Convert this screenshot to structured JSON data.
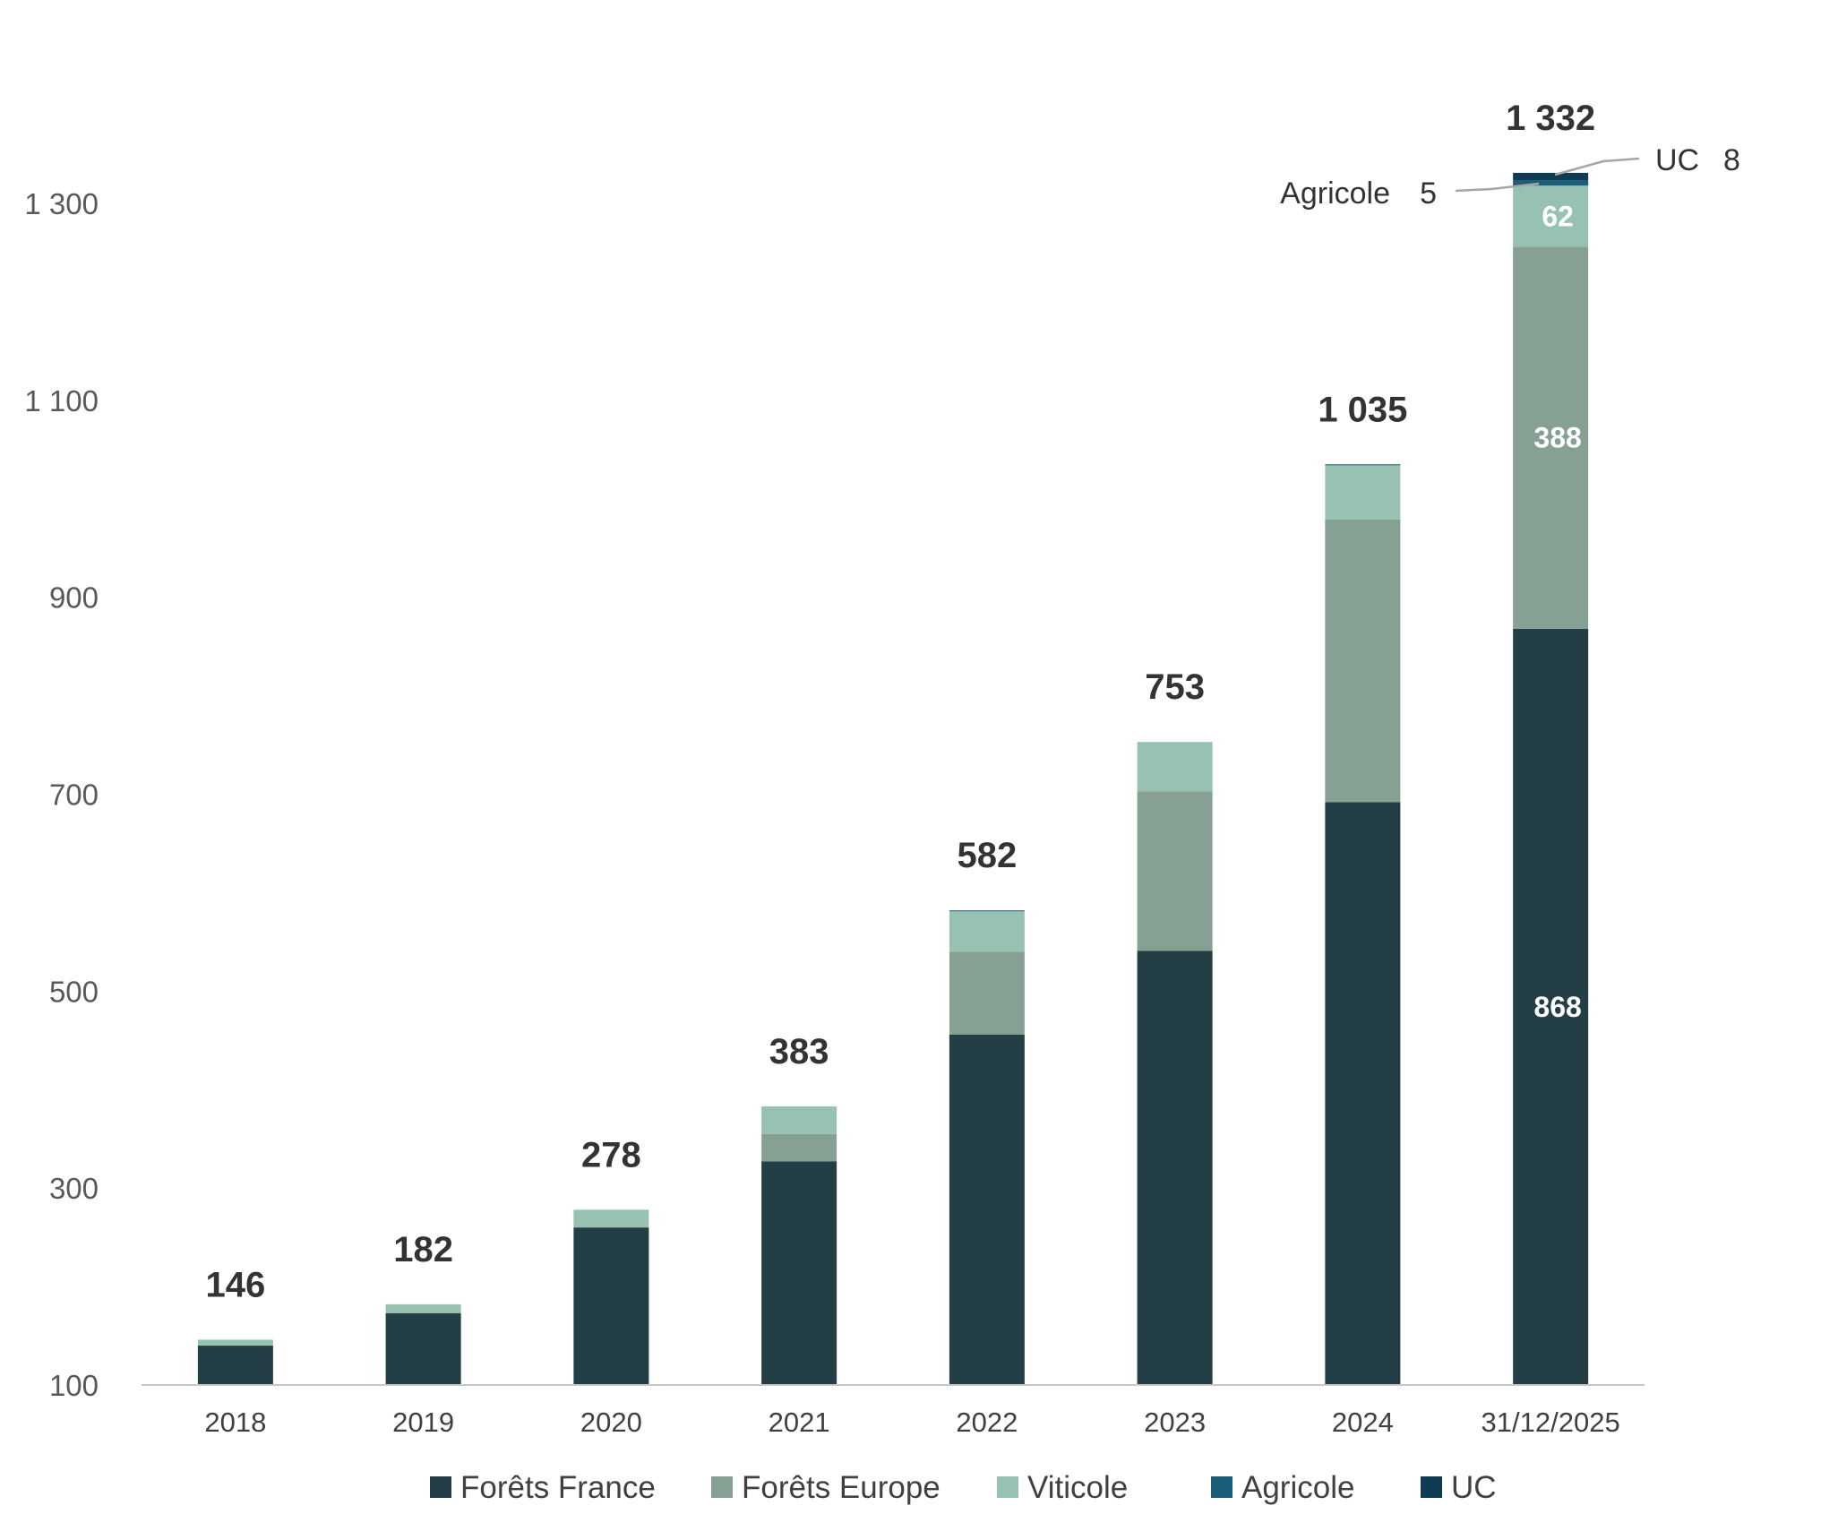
{
  "chart_data": {
    "type": "bar",
    "stacked": true,
    "categories": [
      "2018",
      "2019",
      "2020",
      "2021",
      "2022",
      "2023",
      "2024",
      "31/12/2025"
    ],
    "series": [
      {
        "name": "Forêts France",
        "color": "#243e46",
        "values": [
          140,
          173,
          260,
          327,
          456,
          541,
          692,
          868
        ]
      },
      {
        "name": "Forêts Europe",
        "color": "#87a094",
        "values": [
          0,
          0,
          0,
          28,
          84,
          162,
          287,
          388
        ]
      },
      {
        "name": "Viticole",
        "color": "#97c2b1",
        "values": [
          6,
          9,
          18,
          28,
          41,
          50,
          55,
          62
        ]
      },
      {
        "name": "Agricole",
        "color": "#1b5e7a",
        "values": [
          0,
          0,
          0,
          0,
          1,
          0,
          1,
          5
        ]
      },
      {
        "name": "UC",
        "color": "#0f3c55",
        "values": [
          0,
          0,
          0,
          0,
          0,
          0,
          0,
          8
        ]
      }
    ],
    "totals": [
      "146",
      "182",
      "278",
      "383",
      "582",
      "753",
      "1 035",
      "1 332"
    ],
    "segment_labels": {
      "Forêts France": "868",
      "Forêts Europe": "388",
      "Viticole": "62"
    },
    "callouts": {
      "agricole": {
        "name": "Agricole",
        "value": "5"
      },
      "uc": {
        "name": "UC",
        "value": "8"
      }
    },
    "yticks": [
      100,
      300,
      500,
      700,
      900,
      1100,
      1300
    ],
    "ytick_labels": [
      "100",
      "300",
      "500",
      "700",
      "900",
      "1 100",
      "1 300"
    ],
    "ylim": [
      100,
      1400
    ],
    "legend_position": "bottom",
    "title": "",
    "xlabel": "",
    "ylabel": ""
  }
}
